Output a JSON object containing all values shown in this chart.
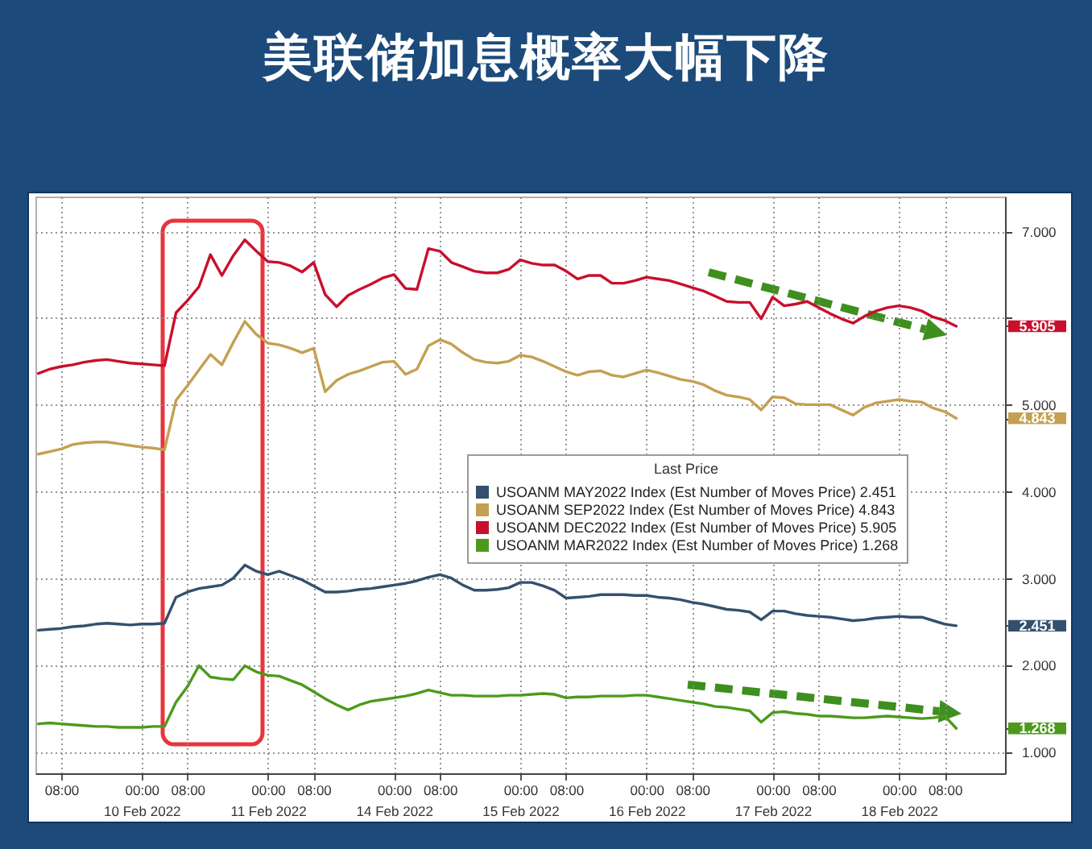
{
  "chart_data": {
    "type": "line",
    "title": "美联储加息概率大幅下降",
    "legend_title": "Last Price",
    "legend": "right",
    "grid": true,
    "categories": [
      null,
      null,
      "08:00",
      null,
      null,
      null,
      null,
      null,
      null,
      "00:00\n10 Feb 2022",
      null,
      null,
      null,
      "08:00",
      null,
      null,
      null,
      null,
      null,
      null,
      "00:00\n11 Feb 2022",
      null,
      null,
      null,
      "08:00",
      null,
      null,
      null,
      null,
      null,
      null,
      "00:00\n14 Feb 2022",
      null,
      null,
      null,
      "08:00",
      null,
      null,
      null,
      null,
      null,
      null,
      "00:00\n15 Feb 2022",
      null,
      null,
      null,
      "08:00",
      null,
      null,
      null,
      null,
      null,
      null,
      "00:00\n16 Feb 2022",
      null,
      null,
      null,
      "08:00",
      null,
      null,
      null,
      null,
      null,
      null,
      "00:00\n17 Feb 2022",
      null,
      null,
      null,
      "08:00",
      null,
      null,
      null,
      null,
      null,
      null,
      "00:00\n18 Feb 2022",
      null,
      null,
      null,
      "08:00",
      null,
      null,
      null,
      null,
      null
    ],
    "ylim": [
      0.75,
      7.4
    ],
    "yticks": [
      {
        "value": 1,
        "label": "1.000"
      },
      {
        "value": 1.268,
        "label": "1.268"
      },
      {
        "value": 2,
        "label": "2.000"
      },
      {
        "value": 2.451,
        "label": "2.451"
      },
      {
        "value": 3,
        "label": "3.000"
      },
      {
        "value": 4,
        "label": "4.000"
      },
      {
        "value": 4.843,
        "label": "4.843"
      },
      {
        "value": 5,
        "label": "5.000"
      },
      {
        "value": 5.905,
        "label": "5.905"
      },
      {
        "value": 6,
        "label": null
      },
      {
        "value": 7,
        "label": "7.000"
      }
    ],
    "series": [
      {
        "name": "USOANM MAY2022 Index (Est Number of Moves Price) 2.451",
        "color": "#34506e",
        "values": [
          2.4,
          2.41,
          2.42,
          2.44,
          2.45,
          2.47,
          2.48,
          2.47,
          2.46,
          2.47,
          2.47,
          2.48,
          2.78,
          2.84,
          2.88,
          2.9,
          2.92,
          3.0,
          3.15,
          3.08,
          3.04,
          3.08,
          3.03,
          2.98,
          2.91,
          2.84,
          2.84,
          2.85,
          2.87,
          2.88,
          2.9,
          2.92,
          2.94,
          2.97,
          3.01,
          3.04,
          3.0,
          2.92,
          2.86,
          2.86,
          2.87,
          2.89,
          2.95,
          2.95,
          2.91,
          2.86,
          2.77,
          2.78,
          2.79,
          2.81,
          2.81,
          2.81,
          2.8,
          2.8,
          2.78,
          2.77,
          2.75,
          2.72,
          2.7,
          2.67,
          2.64,
          2.63,
          2.61,
          2.52,
          2.62,
          2.62,
          2.59,
          2.57,
          2.56,
          2.55,
          2.53,
          2.51,
          2.52,
          2.54,
          2.55,
          2.56,
          2.55,
          2.55,
          2.51,
          2.47,
          2.451,
          null,
          null,
          null,
          null
        ]
      },
      {
        "name": "USOANM SEP2022 Index (Est Number of Moves Price) 4.843",
        "color": "#c4a052",
        "values": [
          4.43,
          4.46,
          4.49,
          4.54,
          4.56,
          4.57,
          4.57,
          4.55,
          4.53,
          4.51,
          4.5,
          4.48,
          5.05,
          5.22,
          5.4,
          5.58,
          5.46,
          5.72,
          5.96,
          5.81,
          5.71,
          5.69,
          5.65,
          5.6,
          5.65,
          5.15,
          5.28,
          5.35,
          5.39,
          5.44,
          5.49,
          5.5,
          5.35,
          5.41,
          5.68,
          5.75,
          5.7,
          5.6,
          5.52,
          5.49,
          5.48,
          5.5,
          5.57,
          5.55,
          5.5,
          5.44,
          5.38,
          5.34,
          5.38,
          5.39,
          5.34,
          5.32,
          5.36,
          5.4,
          5.37,
          5.33,
          5.29,
          5.27,
          5.23,
          5.16,
          5.11,
          5.09,
          5.06,
          4.94,
          5.09,
          5.08,
          5.01,
          5.0,
          5.0,
          5.0,
          4.94,
          4.88,
          4.97,
          5.02,
          5.04,
          5.06,
          5.04,
          5.03,
          4.96,
          4.92,
          4.843,
          null,
          null,
          null,
          null
        ]
      },
      {
        "name": "USOANM DEC2022 Index (Est Number of Moves Price) 5.905",
        "color": "#c8102e",
        "values": [
          5.36,
          5.41,
          5.44,
          5.46,
          5.49,
          5.51,
          5.52,
          5.5,
          5.48,
          5.47,
          5.46,
          5.45,
          6.06,
          6.2,
          6.36,
          6.73,
          6.49,
          6.72,
          6.9,
          6.77,
          6.65,
          6.64,
          6.6,
          6.53,
          6.64,
          6.27,
          6.13,
          6.26,
          6.33,
          6.39,
          6.46,
          6.5,
          6.34,
          6.33,
          6.8,
          6.77,
          6.64,
          6.59,
          6.54,
          6.52,
          6.52,
          6.56,
          6.67,
          6.63,
          6.61,
          6.61,
          6.54,
          6.45,
          6.49,
          6.49,
          6.4,
          6.4,
          6.43,
          6.47,
          6.45,
          6.43,
          6.39,
          6.35,
          6.31,
          6.25,
          6.19,
          6.18,
          6.18,
          5.99,
          6.24,
          6.14,
          6.16,
          6.19,
          6.12,
          6.05,
          5.99,
          5.94,
          6.02,
          6.08,
          6.12,
          6.14,
          6.12,
          6.08,
          6.01,
          5.97,
          5.905,
          null,
          null,
          null,
          null
        ]
      },
      {
        "name": "USOANM MAR2022 Index (Est Number of Moves Price) 1.268",
        "color": "#4c9a1c",
        "values": [
          1.32,
          1.33,
          1.32,
          1.31,
          1.3,
          1.29,
          1.29,
          1.28,
          1.28,
          1.28,
          1.29,
          1.29,
          1.57,
          1.75,
          1.99,
          1.86,
          1.84,
          1.83,
          1.99,
          1.92,
          1.88,
          1.87,
          1.82,
          1.77,
          1.69,
          1.61,
          1.54,
          1.48,
          1.54,
          1.58,
          1.6,
          1.62,
          1.64,
          1.67,
          1.71,
          1.68,
          1.65,
          1.65,
          1.64,
          1.64,
          1.64,
          1.65,
          1.65,
          1.66,
          1.67,
          1.66,
          1.62,
          1.63,
          1.63,
          1.64,
          1.64,
          1.64,
          1.65,
          1.65,
          1.63,
          1.61,
          1.59,
          1.57,
          1.55,
          1.52,
          1.51,
          1.49,
          1.47,
          1.34,
          1.45,
          1.46,
          1.44,
          1.43,
          1.41,
          1.41,
          1.4,
          1.39,
          1.39,
          1.4,
          1.41,
          1.4,
          1.39,
          1.38,
          1.39,
          1.41,
          1.268,
          null,
          null,
          null,
          null
        ]
      }
    ]
  }
}
